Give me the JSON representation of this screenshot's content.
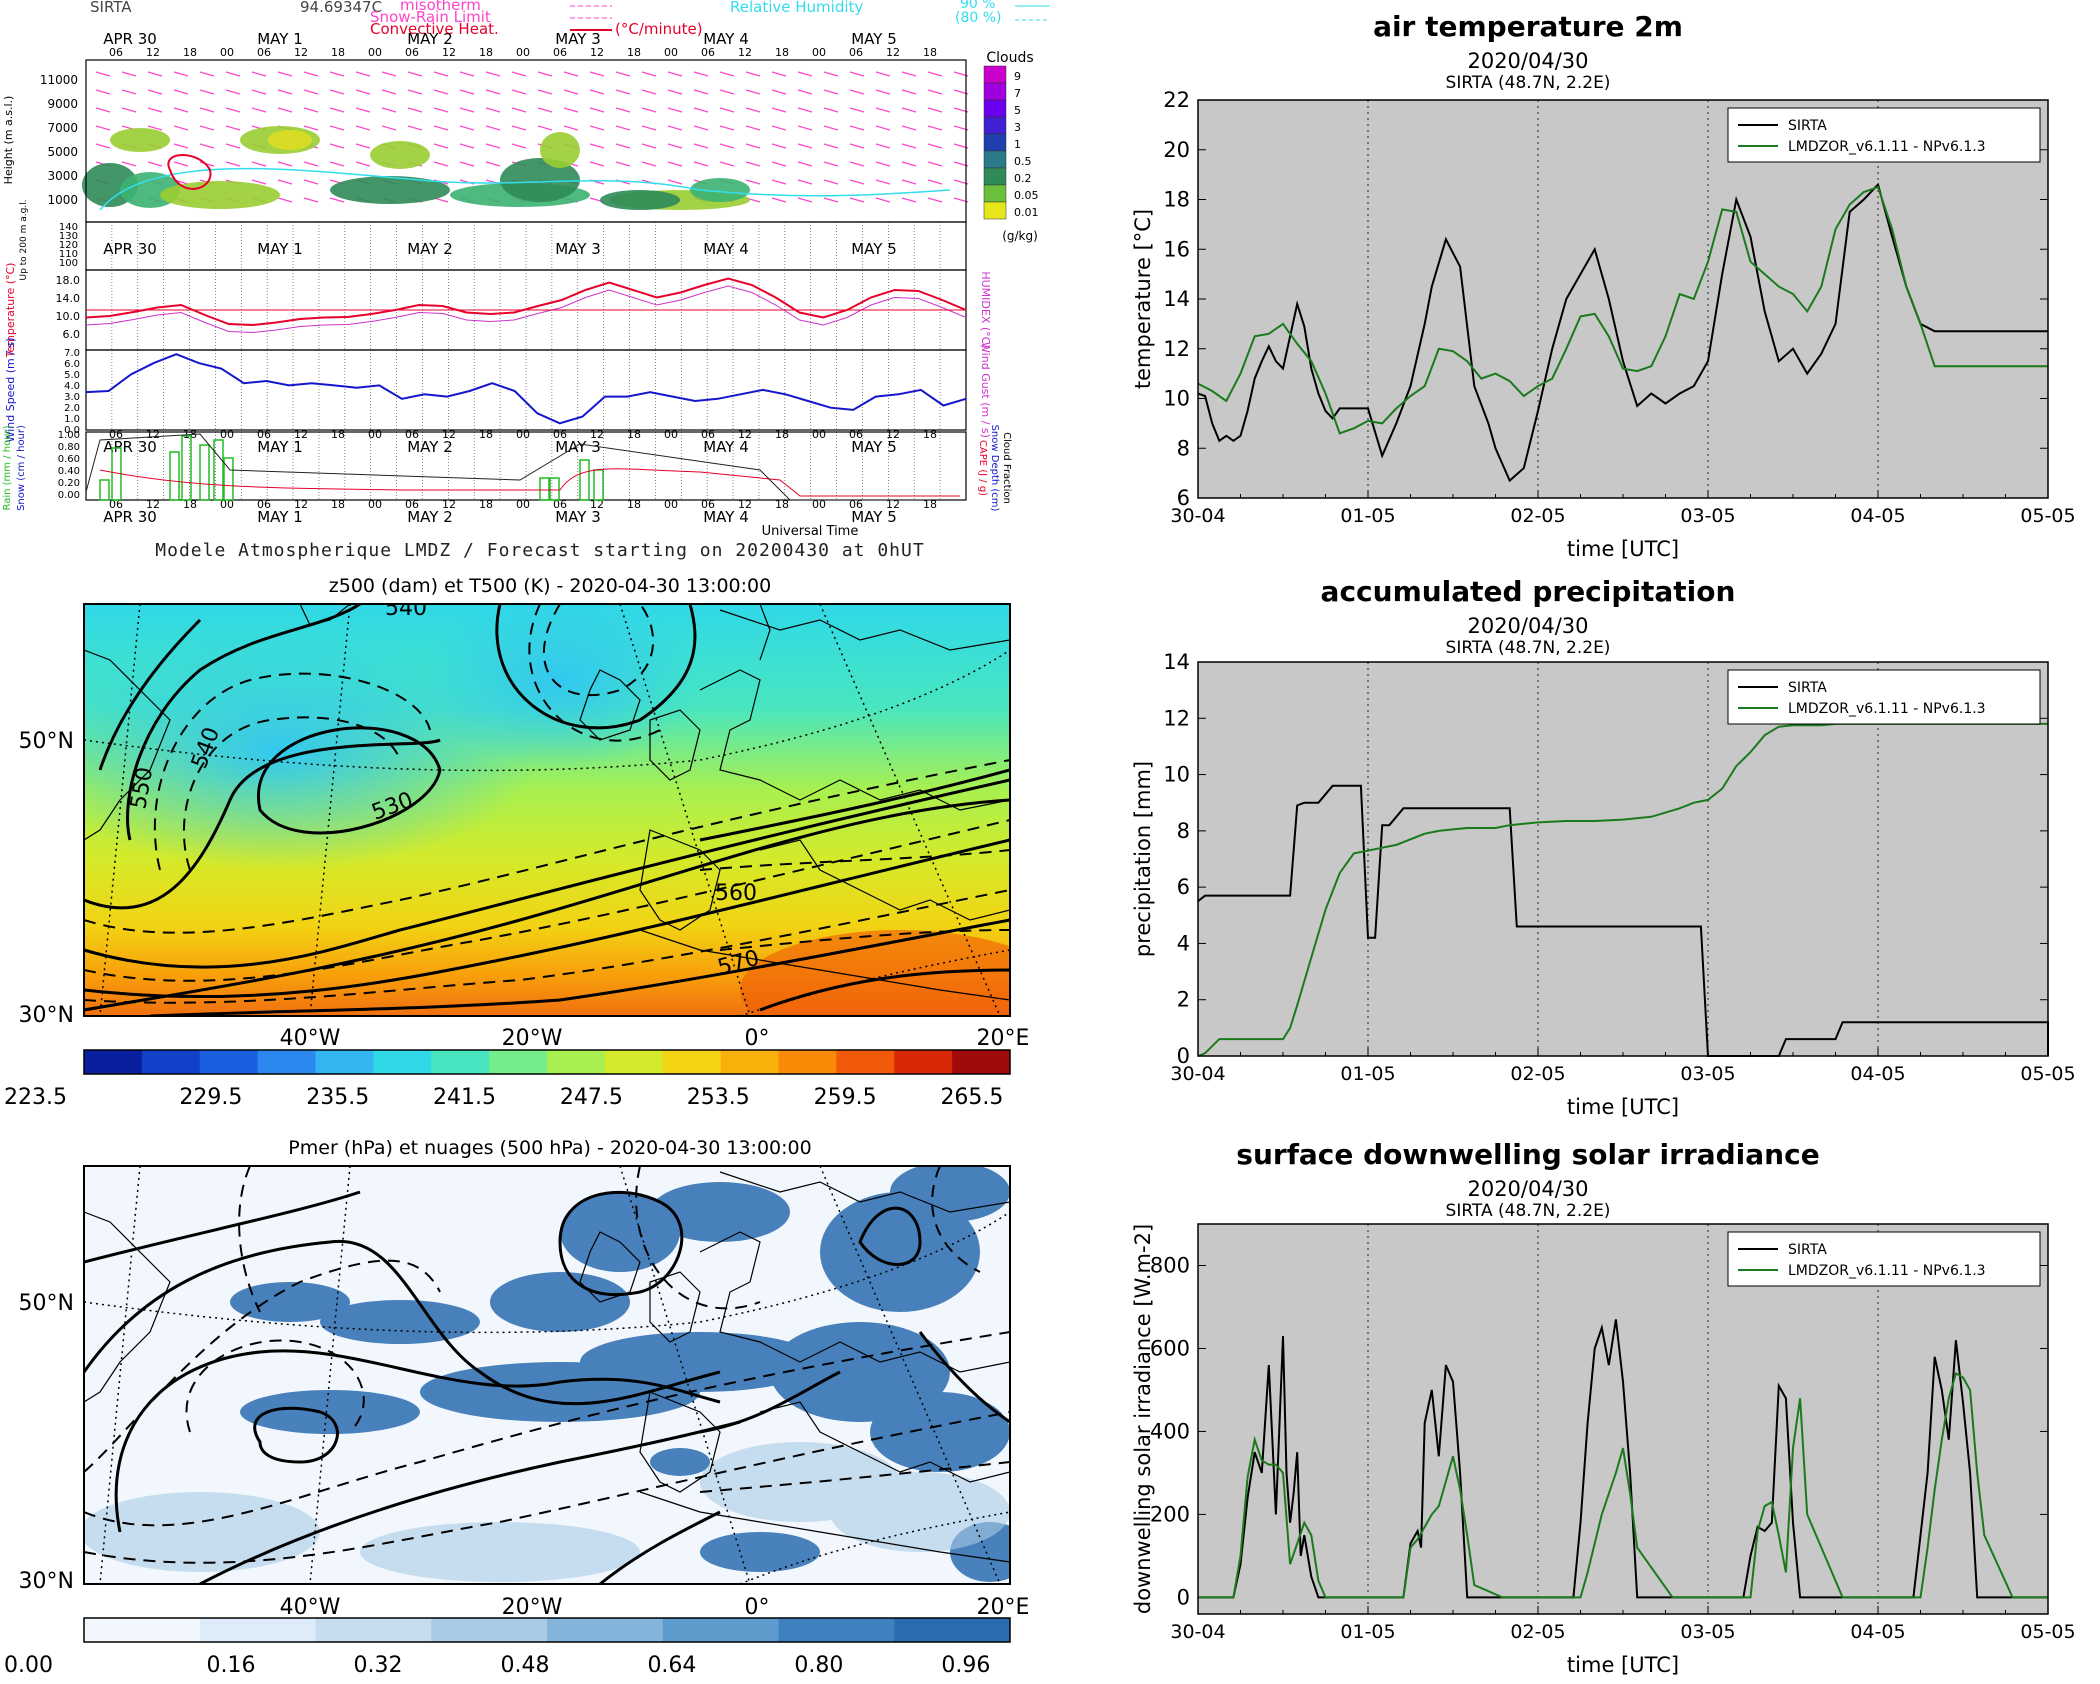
{
  "meteogram": {
    "station": "SIRTA",
    "station_value": "94.69347C",
    "legend_isotherm": "misotherm",
    "legend_snow_rain": "Snow-Rain Limit",
    "legend_convective": "Convective Heat.",
    "legend_unit": "(°C/minute)",
    "legend_rh": "Relative Humidity",
    "legend_rh_90": "90 %",
    "legend_rh_80": "(80 %)",
    "clouds_label": "Clouds",
    "clouds_scale": [
      "9",
      "7",
      "5",
      "3",
      "1",
      "0.5",
      "0.2",
      "0.05",
      "0.01"
    ],
    "clouds_unit": "(g/kg)",
    "day_labels": [
      "APR 30",
      "MAY  1",
      "MAY  2",
      "MAY  3",
      "MAY  4",
      "MAY  5"
    ],
    "hour_labels": [
      "06",
      "12",
      "18",
      "00"
    ],
    "height_ticks": [
      "11000",
      "9000",
      "7000",
      "5000",
      "3000",
      "1000"
    ],
    "height_label": "Height (m a.s.l.)",
    "lowlevel_label": "Up to 200 m a.g.l.",
    "lowlevel_ticks": [
      "140",
      "130",
      "120",
      "110",
      "100"
    ],
    "temp_ticks": [
      "18.0",
      "14.0",
      "10.0",
      "6.0"
    ],
    "temp_label": "Temperature (°C)",
    "humidex_label": "HUMIDEX (°C)",
    "wind_ticks": [
      "7.0",
      "6.0",
      "5.0",
      "4.0",
      "3.0",
      "2.0",
      "1.0",
      "0.0"
    ],
    "wind_label": "Wind Speed (m / s)",
    "gust_label": "Wind Gust (m / s)",
    "precip_ticks": [
      "1.00",
      "0.80",
      "0.60",
      "0.40",
      "0.20",
      "0.00"
    ],
    "precip_label_rain": "Rain (mm / hour)",
    "precip_label_snow": "Snow (cm / hour)",
    "cape_label": "CAPE (J / g)",
    "snowdepth_label": "Snow Depth (cm)",
    "cloudfrac_label": "Cloud Fraction",
    "universal_time": "Universal Time",
    "footer": "Modele Atmospherique LMDZ / Forecast starting on 20200430 at 0hUT",
    "colors": {
      "temp": "#e8002a",
      "humidex": "#cc33cc",
      "wind": "#1515cc",
      "rain": "#22bb22",
      "cape": "#e8002a",
      "rh": "#33ddee",
      "iso": "#ff44cc"
    }
  },
  "map_top": {
    "title": "z500 (dam) et T500 (K) - 2020-04-30 13:00:00",
    "lat_labels": [
      "50°N",
      "30°N"
    ],
    "lon_labels": [
      "40°W",
      "20°W",
      "0°",
      "20°E"
    ],
    "contour_labels": [
      "540",
      "540",
      "530",
      "550",
      "560",
      "570"
    ],
    "colorbar_ticks": [
      "223.5",
      "229.5",
      "235.5",
      "241.5",
      "247.5",
      "253.5",
      "259.5",
      "265.5"
    ],
    "colorbar_colors": [
      "#0a1f9e",
      "#1240c8",
      "#1a5fe0",
      "#2a88ee",
      "#33b5f2",
      "#30d8e8",
      "#48e6c0",
      "#74ee8c",
      "#a8f050",
      "#d4ea2a",
      "#f2d414",
      "#f8b00a",
      "#f88a08",
      "#f05a08",
      "#d82808",
      "#a00a0a"
    ]
  },
  "map_bottom": {
    "title": "Pmer (hPa) et nuages (500 hPa) - 2020-04-30 13:00:00",
    "lat_labels": [
      "50°N",
      "30°N"
    ],
    "lon_labels": [
      "40°W",
      "20°W",
      "0°",
      "20°E"
    ],
    "colorbar_ticks": [
      "0.00",
      "0.16",
      "0.32",
      "0.48",
      "0.64",
      "0.80",
      "0.96"
    ],
    "colorbar_colors": [
      "#f2f7fd",
      "#deebf8",
      "#c8dcf0",
      "#a9cbe6",
      "#84b4da",
      "#5e9bcd",
      "#3d81bf",
      "#2a6cb0"
    ]
  },
  "chart_data": [
    {
      "type": "line",
      "title": "air temperature 2m",
      "subtitle": "2020/04/30",
      "subtitle2": "SIRTA (48.7N, 2.2E)",
      "xlabel": "time [UTC]",
      "ylabel": "temperature [°C]",
      "x_ticks": [
        "30-04",
        "01-05",
        "02-05",
        "03-05",
        "04-05",
        "05-05"
      ],
      "xlim": [
        0,
        120
      ],
      "ylim": [
        6,
        22
      ],
      "y_ticks": [
        6,
        8,
        10,
        12,
        14,
        16,
        18,
        20,
        22
      ],
      "grid": true,
      "legend_position": "top-right",
      "series": [
        {
          "name": "SIRTA",
          "color": "#000000",
          "x": [
            0,
            1,
            2,
            3,
            4,
            5,
            6,
            7,
            8,
            9,
            10,
            11,
            12,
            13,
            14,
            15,
            16,
            17,
            18,
            19,
            20,
            21,
            22,
            24,
            26,
            28,
            30,
            32,
            33,
            35,
            37,
            39,
            41,
            42,
            44,
            46,
            48,
            50,
            52,
            54,
            56,
            58,
            60,
            62,
            64,
            66,
            68,
            70,
            72,
            74,
            76,
            78,
            80,
            82,
            84,
            86,
            88,
            90,
            92,
            94,
            96,
            98,
            100,
            102,
            104,
            106,
            108,
            110,
            112,
            114,
            116,
            118,
            120
          ],
          "y": [
            10.2,
            10.1,
            9.0,
            8.3,
            8.5,
            8.3,
            8.5,
            9.5,
            10.8,
            11.5,
            12.1,
            11.5,
            11.2,
            12.5,
            13.8,
            12.9,
            11.2,
            10.2,
            9.5,
            9.2,
            9.6,
            9.6,
            9.6,
            9.6,
            7.7,
            9.0,
            10.5,
            13.0,
            14.5,
            16.4,
            15.3,
            10.5,
            9.0,
            8.0,
            6.7,
            7.2,
            9.5,
            12.0,
            14.0,
            15.0,
            16.0,
            14.0,
            11.5,
            9.7,
            10.2,
            9.8,
            10.2,
            10.5,
            11.5,
            15.0,
            18.0,
            16.5,
            13.5,
            11.5,
            12.0,
            11.0,
            11.8,
            13.0,
            17.5,
            18.0,
            18.6,
            16.5,
            14.5,
            13.0,
            12.7,
            12.7,
            12.7,
            12.7,
            12.7,
            12.7,
            12.7,
            12.7,
            12.7
          ]
        },
        {
          "name": "LMDZOR_v6.1.11 - NPv6.1.3",
          "color": "#1b7a1b",
          "x": [
            0,
            2,
            4,
            6,
            8,
            10,
            12,
            14,
            16,
            18,
            20,
            22,
            24,
            26,
            28,
            30,
            32,
            34,
            36,
            38,
            40,
            42,
            44,
            46,
            48,
            50,
            52,
            54,
            56,
            58,
            60,
            62,
            64,
            66,
            68,
            70,
            72,
            74,
            76,
            78,
            80,
            82,
            84,
            86,
            88,
            90,
            92,
            94,
            96,
            98,
            100,
            102,
            104,
            106,
            108,
            110,
            112,
            114,
            116,
            118,
            120
          ],
          "y": [
            10.6,
            10.3,
            9.9,
            11.0,
            12.5,
            12.6,
            13.0,
            12.2,
            11.5,
            10.2,
            8.6,
            8.8,
            9.1,
            9.0,
            9.6,
            10.1,
            10.5,
            12.0,
            11.9,
            11.5,
            10.8,
            11.0,
            10.7,
            10.1,
            10.5,
            10.8,
            12.0,
            13.3,
            13.4,
            12.5,
            11.2,
            11.1,
            11.3,
            12.5,
            14.2,
            14.0,
            15.5,
            17.6,
            17.5,
            15.5,
            15.0,
            14.5,
            14.2,
            13.5,
            14.5,
            16.8,
            17.8,
            18.3,
            18.5,
            16.8,
            14.5,
            13.0,
            11.3,
            11.3,
            11.3,
            11.3,
            11.3,
            11.3,
            11.3,
            11.3,
            11.3
          ]
        }
      ]
    },
    {
      "type": "line",
      "title": "accumulated precipitation",
      "subtitle": "2020/04/30",
      "subtitle2": "SIRTA (48.7N, 2.2E)",
      "xlabel": "time [UTC]",
      "ylabel": "precipitation [mm]",
      "x_ticks": [
        "30-04",
        "01-05",
        "02-05",
        "03-05",
        "04-05",
        "05-05"
      ],
      "xlim": [
        0,
        120
      ],
      "ylim": [
        0,
        14
      ],
      "y_ticks": [
        0,
        2,
        4,
        6,
        8,
        10,
        12,
        14
      ],
      "grid": true,
      "legend_position": "top-right",
      "series": [
        {
          "name": "SIRTA",
          "color": "#000000",
          "x": [
            0,
            1,
            13,
            14,
            15,
            17,
            18,
            19,
            20,
            23,
            24,
            25,
            26,
            27,
            28,
            29,
            30,
            44,
            45,
            48,
            60,
            71,
            72,
            73,
            82,
            83,
            90,
            91,
            120,
            120
          ],
          "y": [
            5.5,
            5.7,
            5.7,
            8.9,
            9.0,
            9.0,
            9.3,
            9.6,
            9.6,
            9.6,
            4.2,
            4.2,
            8.2,
            8.2,
            8.5,
            8.8,
            8.8,
            8.8,
            4.6,
            4.6,
            4.6,
            4.6,
            0.0,
            0.0,
            0.0,
            0.6,
            0.6,
            1.2,
            1.2,
            0.0
          ]
        },
        {
          "name": "LMDZOR_v6.1.11 - NPv6.1.3",
          "color": "#1b7a1b",
          "x": [
            0,
            1,
            3,
            12,
            13,
            14,
            16,
            18,
            20,
            22,
            24,
            26,
            28,
            30,
            32,
            34,
            36,
            38,
            40,
            42,
            44,
            46,
            48,
            52,
            56,
            60,
            64,
            68,
            70,
            72,
            74,
            76,
            78,
            80,
            82,
            84,
            86,
            88,
            90,
            94,
            100,
            110,
            120
          ],
          "y": [
            0.0,
            0.1,
            0.6,
            0.6,
            1.0,
            1.8,
            3.5,
            5.2,
            6.5,
            7.2,
            7.3,
            7.4,
            7.5,
            7.7,
            7.9,
            8.0,
            8.05,
            8.1,
            8.1,
            8.1,
            8.2,
            8.25,
            8.3,
            8.35,
            8.35,
            8.4,
            8.5,
            8.8,
            9.0,
            9.1,
            9.5,
            10.3,
            10.8,
            11.4,
            11.7,
            11.75,
            11.75,
            11.75,
            11.8,
            11.8,
            11.8,
            11.8,
            11.8
          ]
        }
      ]
    },
    {
      "type": "line",
      "title": "surface downwelling solar irradiance",
      "subtitle": "2020/04/30",
      "subtitle2": "SIRTA (48.7N, 2.2E)",
      "xlabel": "time [UTC]",
      "ylabel": "downwelling solar irradiance [W.m-2]",
      "x_ticks": [
        "30-04",
        "01-05",
        "02-05",
        "03-05",
        "04-05",
        "05-05"
      ],
      "xlim": [
        0,
        120
      ],
      "ylim": [
        -40,
        900
      ],
      "y_ticks": [
        0,
        200,
        400,
        600,
        800
      ],
      "grid": true,
      "legend_position": "top-right",
      "series": [
        {
          "name": "SIRTA",
          "color": "#000000",
          "x": [
            0,
            5,
            6,
            7,
            8,
            9,
            10,
            11,
            12,
            12.5,
            13,
            13.5,
            14,
            14.5,
            15,
            16,
            17,
            18,
            19,
            24,
            29,
            30,
            31,
            31.5,
            32,
            33,
            34,
            35,
            36,
            37,
            38,
            43,
            53,
            54,
            55,
            56,
            57,
            58,
            59,
            60,
            61,
            62,
            67,
            77,
            78,
            79,
            80,
            81,
            82,
            83,
            84,
            85,
            86,
            91,
            101,
            102,
            103,
            104,
            105,
            106,
            107,
            108,
            109,
            110,
            115,
            120
          ],
          "y": [
            0,
            0,
            80,
            240,
            350,
            300,
            560,
            200,
            630,
            300,
            180,
            250,
            350,
            100,
            150,
            50,
            0,
            0,
            0,
            0,
            0,
            130,
            160,
            120,
            420,
            500,
            340,
            560,
            520,
            300,
            0,
            0,
            0,
            180,
            420,
            600,
            650,
            560,
            670,
            520,
            300,
            0,
            0,
            0,
            100,
            170,
            160,
            180,
            510,
            480,
            180,
            0,
            0,
            0,
            0,
            150,
            300,
            580,
            500,
            380,
            620,
            470,
            300,
            0,
            0,
            0
          ]
        },
        {
          "name": "LMDZOR_v6.1.11 - NPv6.1.3",
          "color": "#1b7a1b",
          "x": [
            0,
            5,
            6,
            7,
            8,
            9,
            10,
            11,
            12,
            13,
            14,
            15,
            16,
            17,
            18,
            24,
            29,
            30,
            31,
            32,
            33,
            34,
            35,
            36,
            37,
            38,
            39,
            43,
            53,
            54,
            55,
            56,
            57,
            58,
            59,
            60,
            61,
            62,
            67,
            77,
            78,
            79,
            80,
            81,
            82,
            83,
            84,
            85,
            86,
            91,
            101,
            102,
            103,
            104,
            105,
            106,
            107,
            108,
            109,
            110,
            111,
            115,
            120
          ],
          "y": [
            0,
            0,
            100,
            290,
            380,
            330,
            320,
            320,
            300,
            80,
            130,
            180,
            150,
            40,
            0,
            0,
            0,
            120,
            140,
            170,
            200,
            220,
            280,
            340,
            260,
            150,
            30,
            0,
            0,
            0,
            60,
            130,
            200,
            250,
            300,
            360,
            250,
            120,
            0,
            0,
            0,
            160,
            220,
            230,
            150,
            60,
            360,
            480,
            200,
            0,
            0,
            0,
            120,
            260,
            380,
            480,
            540,
            530,
            500,
            300,
            150,
            0,
            0
          ]
        }
      ]
    }
  ]
}
